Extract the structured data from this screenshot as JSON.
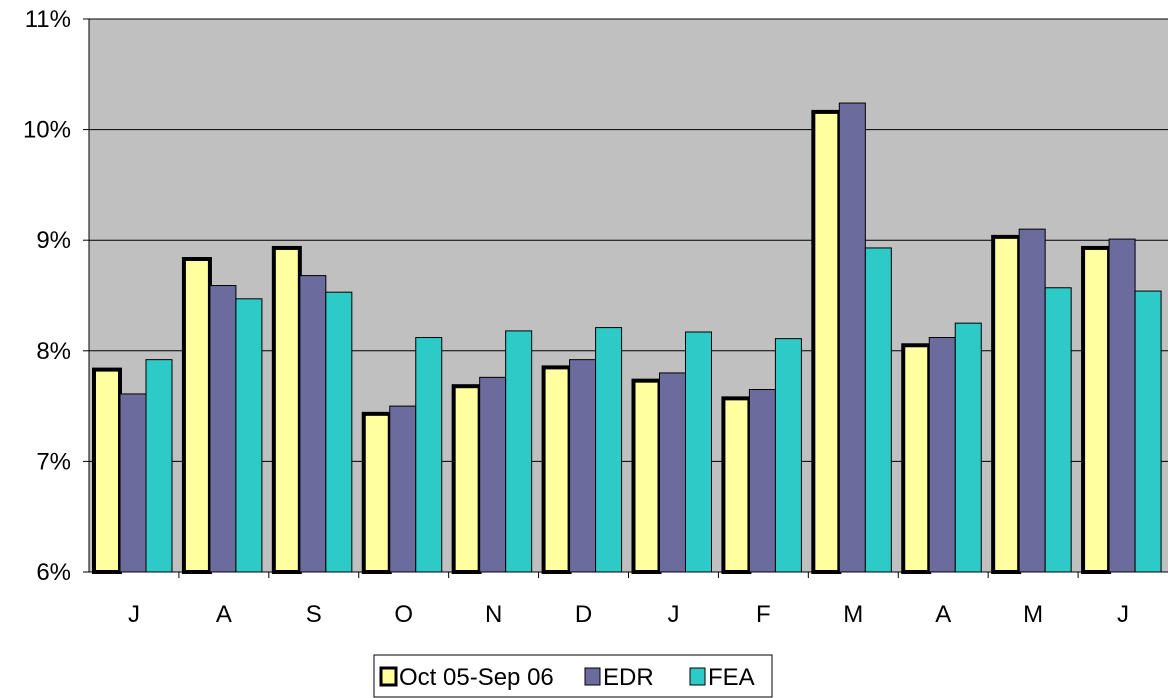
{
  "chart_data": {
    "type": "bar",
    "categories": [
      "J",
      "A",
      "S",
      "O",
      "N",
      "D",
      "J",
      "F",
      "M",
      "A",
      "M",
      "J"
    ],
    "series": [
      {
        "name": "Oct 05-Sep 06",
        "color": "#FFFFA0",
        "values": [
          7.83,
          8.83,
          8.93,
          7.43,
          7.68,
          7.85,
          7.73,
          7.57,
          10.16,
          8.05,
          9.03,
          8.93
        ]
      },
      {
        "name": "EDR",
        "color": "#6B6B9E",
        "values": [
          7.61,
          8.59,
          8.68,
          7.5,
          7.76,
          7.92,
          7.8,
          7.65,
          10.24,
          8.12,
          9.1,
          9.01
        ]
      },
      {
        "name": "FEA",
        "color": "#2ECAC8",
        "values": [
          7.92,
          8.47,
          8.53,
          8.12,
          8.18,
          8.21,
          8.17,
          8.11,
          8.93,
          8.25,
          8.57,
          8.54
        ]
      }
    ],
    "ylim": [
      6,
      11
    ],
    "yticks": [
      6,
      7,
      8,
      9,
      10,
      11
    ],
    "ytick_labels": [
      "6%",
      "7%",
      "8%",
      "9%",
      "10%",
      "11%"
    ],
    "plot_background": "#C0C0C0",
    "grid": true,
    "legend_position": "bottom",
    "xlabel": "",
    "ylabel": "",
    "title": ""
  }
}
